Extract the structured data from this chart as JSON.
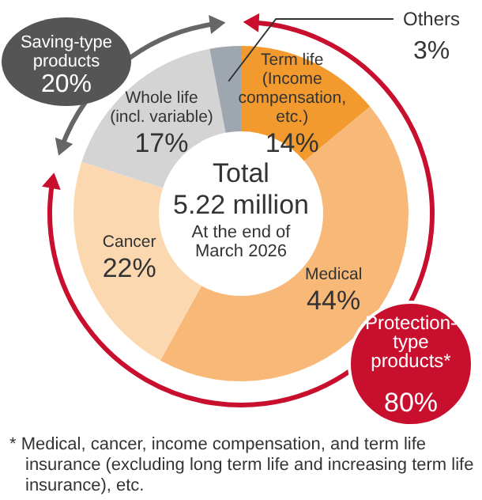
{
  "chart_data": {
    "type": "donut",
    "categories": [
      "Term life (Income compensation, etc.)",
      "Medical",
      "Cancer",
      "Whole life (incl. variable)",
      "Others"
    ],
    "values": [
      14,
      44,
      22,
      17,
      3
    ],
    "colors": [
      "#f39a2e",
      "#f8b878",
      "#fbd8b0",
      "#d4d4d4",
      "#9ea6b0"
    ],
    "value_labels": [
      "14%",
      "44%",
      "22%",
      "17%",
      "3%"
    ],
    "annotations": [
      "Total",
      "5.22 million",
      "At the end of March 2026",
      "Saving-type products",
      "20%",
      "Protection-type products*",
      "80%",
      "* Medical, cancer, income compensation, and term life insurance (excluding long term life and increasing term life insurance), etc."
    ]
  }
}
